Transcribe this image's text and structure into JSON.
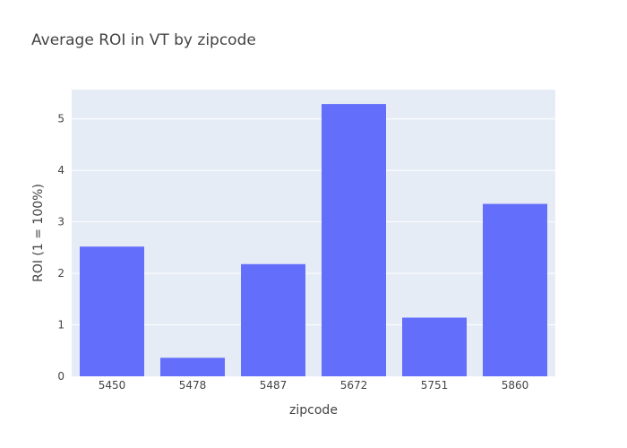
{
  "chart_data": {
    "type": "bar",
    "title": "Average ROI in VT by zipcode",
    "xlabel": "zipcode",
    "ylabel": "ROI (1 = 100%)",
    "categories": [
      "5450",
      "5478",
      "5487",
      "5672",
      "5751",
      "5860"
    ],
    "values": [
      2.52,
      0.36,
      2.18,
      5.29,
      1.14,
      3.35
    ],
    "ylim": [
      0,
      5.57
    ],
    "yticks": [
      0,
      1,
      2,
      3,
      4,
      5
    ],
    "grid": true,
    "bar_color": "#636efa",
    "plot_bg": "#e5ecf6",
    "grid_color": "#ffffff"
  }
}
